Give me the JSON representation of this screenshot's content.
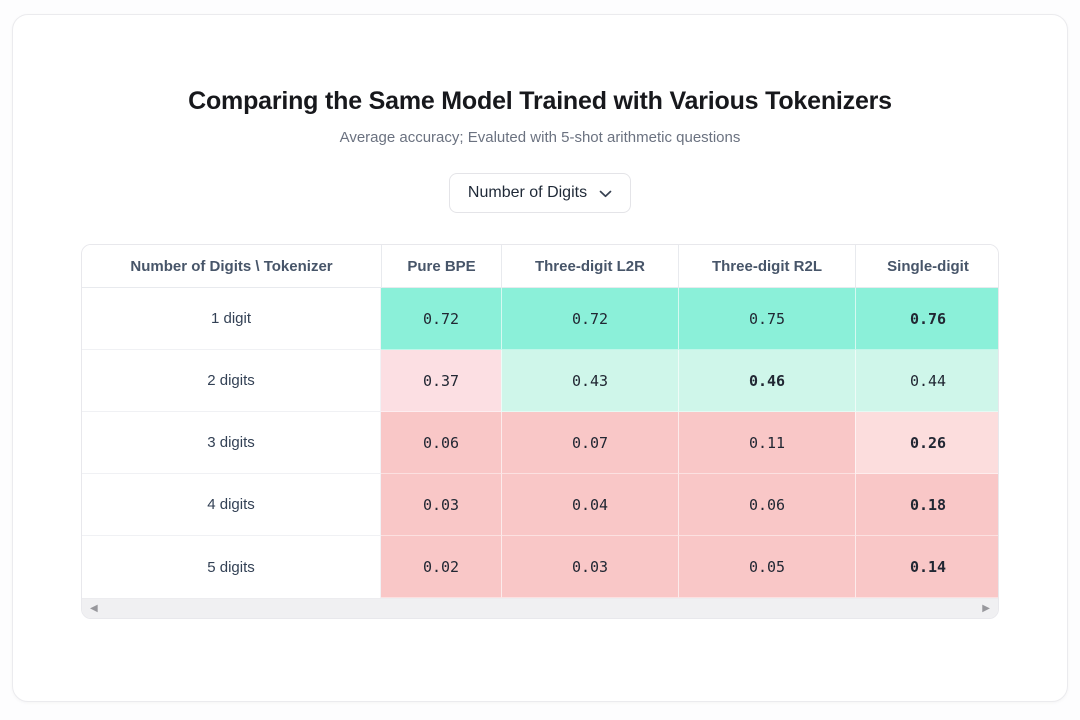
{
  "card": {
    "title": "Comparing the Same Model Trained with Various Tokenizers",
    "subtitle": "Average accuracy; Evaluted with 5-shot arithmetic questions"
  },
  "dropdown": {
    "selected_label": "Number of Digits",
    "icon": "chevron-down-icon"
  },
  "table": {
    "corner_header": "Number of Digits \\ Tokenizer",
    "column_headers": [
      "Pure BPE",
      "Three-digit L2R",
      "Three-digit R2L",
      "Single-digit"
    ],
    "rows": [
      {
        "label": "1 digit",
        "cells": [
          {
            "value": "0.72",
            "bg": "#8bf0d9",
            "bold": false
          },
          {
            "value": "0.72",
            "bg": "#8bf0d9",
            "bold": false
          },
          {
            "value": "0.75",
            "bg": "#8bf0d9",
            "bold": false
          },
          {
            "value": "0.76",
            "bg": "#8bf0d9",
            "bold": true
          }
        ]
      },
      {
        "label": "2 digits",
        "cells": [
          {
            "value": "0.37",
            "bg": "#fcdfe3",
            "bold": false
          },
          {
            "value": "0.43",
            "bg": "#cff6ea",
            "bold": false
          },
          {
            "value": "0.46",
            "bg": "#cff6ea",
            "bold": true
          },
          {
            "value": "0.44",
            "bg": "#cff6ea",
            "bold": false
          }
        ]
      },
      {
        "label": "3 digits",
        "cells": [
          {
            "value": "0.06",
            "bg": "#f9c7c7",
            "bold": false
          },
          {
            "value": "0.07",
            "bg": "#f9c7c7",
            "bold": false
          },
          {
            "value": "0.11",
            "bg": "#f9c7c7",
            "bold": false
          },
          {
            "value": "0.26",
            "bg": "#fcdddd",
            "bold": true
          }
        ]
      },
      {
        "label": "4 digits",
        "cells": [
          {
            "value": "0.03",
            "bg": "#f9c7c7",
            "bold": false
          },
          {
            "value": "0.04",
            "bg": "#f9c7c7",
            "bold": false
          },
          {
            "value": "0.06",
            "bg": "#f9c7c7",
            "bold": false
          },
          {
            "value": "0.18",
            "bg": "#f9c7c7",
            "bold": true
          }
        ]
      },
      {
        "label": "5 digits",
        "cells": [
          {
            "value": "0.02",
            "bg": "#f9c7c7",
            "bold": false
          },
          {
            "value": "0.03",
            "bg": "#f9c7c7",
            "bold": false
          },
          {
            "value": "0.05",
            "bg": "#f9c7c7",
            "bold": false
          },
          {
            "value": "0.14",
            "bg": "#f9c7c7",
            "bold": true
          }
        ]
      }
    ]
  },
  "scrollbar": {
    "left_arrow": "◀",
    "right_arrow": "▶"
  },
  "colors": {
    "strong_green": "#8bf0d9",
    "light_green": "#cff6ea",
    "very_light_pink": "#fcdfe3",
    "light_pink": "#fcdddd",
    "medium_pink": "#f9c7c7",
    "header_text": "#475569",
    "title_text": "#17181c"
  }
}
